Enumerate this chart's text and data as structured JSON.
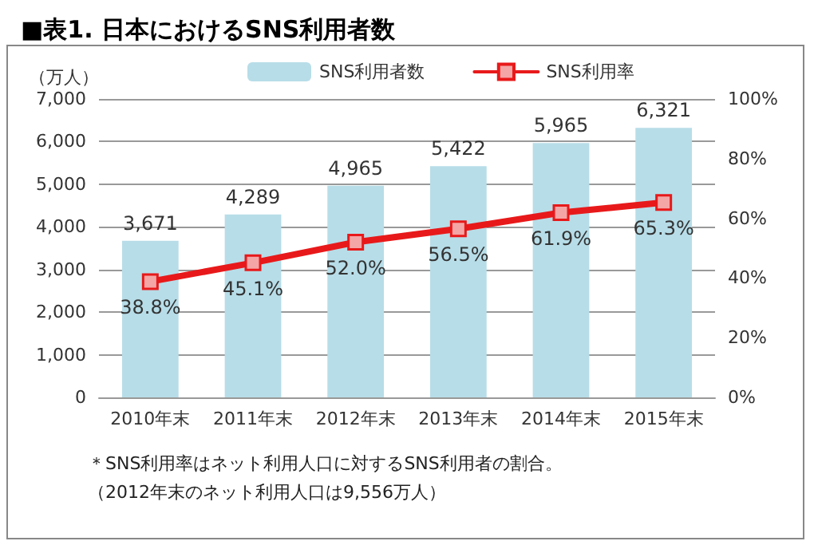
{
  "chart_data": {
    "type": "bar",
    "title": "■表1. 日本におけるSNS利用者数",
    "ylabel": "（万人）",
    "categories": [
      "2010年末",
      "2011年末",
      "2012年末",
      "2013年末",
      "2014年末",
      "2015年末"
    ],
    "series": [
      {
        "name": "SNS利用者数",
        "color": "#b7dde8",
        "values": [
          3671,
          4289,
          4965,
          5422,
          5965,
          6321
        ],
        "value_labels": [
          "3,671",
          "4,289",
          "4,965",
          "5,422",
          "5,965",
          "6,321"
        ]
      },
      {
        "name": "SNS利用率",
        "type": "line",
        "axis": "y2",
        "color": "#e8191a",
        "values": [
          38.8,
          45.1,
          52.0,
          56.5,
          61.9,
          65.3
        ],
        "value_labels": [
          "38.8%",
          "45.1%",
          "52.0%",
          "56.5%",
          "61.9%",
          "65.3%"
        ]
      }
    ],
    "ylim": [
      0,
      7000
    ],
    "yticks": [
      0,
      {
        "value": 1000,
        "label": "1,000"
      },
      {
        "value": 2000,
        "label": "2,000"
      },
      {
        "value": 3000,
        "label": "3,000"
      },
      {
        "value": 4000,
        "label": "4,000"
      },
      {
        "value": 5000,
        "label": "5,000"
      },
      {
        "value": 6000,
        "label": "6,000"
      },
      {
        "value": 7000,
        "label": "7,000"
      }
    ],
    "y2lim": [
      0,
      100
    ],
    "y2ticks": [
      {
        "value": 0,
        "label": "0%"
      },
      {
        "value": 20,
        "label": "20%"
      },
      {
        "value": 40,
        "label": "40%"
      },
      {
        "value": 60,
        "label": "60%"
      },
      {
        "value": 80,
        "label": "80%"
      },
      {
        "value": 100,
        "label": "100%"
      }
    ],
    "grid": "y",
    "legend": "top",
    "marker": "square",
    "annotations": [
      "＊SNS利用率はネット利用人口に対するSNS利用者の割合。",
      "（2012年末のネット利用人口は9,556万人）"
    ]
  }
}
